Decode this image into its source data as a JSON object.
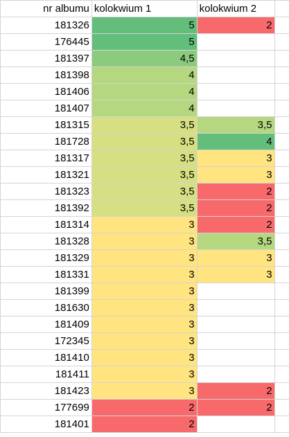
{
  "headers": {
    "album": "nr albumu",
    "k1": "kolokwium 1",
    "k2": "kolokwium 2"
  },
  "colors": {
    "green_dark": "#63be7b",
    "green_mid": "#a9d27f",
    "green_light": "#b5d77f",
    "yellow_green": "#d6df81",
    "yellow": "#ffe47f",
    "red": "#f8696b",
    "white": "#ffffff",
    "gridline": "#d4d4d4"
  },
  "rows": [
    {
      "album": "181326",
      "k1": "5",
      "k1_color": "#63be7b",
      "k2": "2",
      "k2_color": "#f8696b"
    },
    {
      "album": "176445",
      "k1": "5",
      "k1_color": "#63be7b",
      "k2": "",
      "k2_color": "#ffffff"
    },
    {
      "album": "181397",
      "k1": "4,5",
      "k1_color": "#8ccb7e",
      "k2": "",
      "k2_color": "#ffffff"
    },
    {
      "album": "181398",
      "k1": "4",
      "k1_color": "#b5d77f",
      "k2": "",
      "k2_color": "#ffffff"
    },
    {
      "album": "181406",
      "k1": "4",
      "k1_color": "#b5d77f",
      "k2": "",
      "k2_color": "#ffffff"
    },
    {
      "album": "181407",
      "k1": "4",
      "k1_color": "#b5d77f",
      "k2": "",
      "k2_color": "#ffffff"
    },
    {
      "album": "181315",
      "k1": "3,5",
      "k1_color": "#d6df81",
      "k2": "3,5",
      "k2_color": "#b5d77f"
    },
    {
      "album": "181728",
      "k1": "3,5",
      "k1_color": "#d6df81",
      "k2": "4",
      "k2_color": "#63be7b"
    },
    {
      "album": "181317",
      "k1": "3,5",
      "k1_color": "#d6df81",
      "k2": "3",
      "k2_color": "#ffe47f"
    },
    {
      "album": "181321",
      "k1": "3,5",
      "k1_color": "#d6df81",
      "k2": "3",
      "k2_color": "#ffe47f"
    },
    {
      "album": "181323",
      "k1": "3,5",
      "k1_color": "#d6df81",
      "k2": "2",
      "k2_color": "#f8696b"
    },
    {
      "album": "181392",
      "k1": "3,5",
      "k1_color": "#d6df81",
      "k2": "2",
      "k2_color": "#f8696b"
    },
    {
      "album": "181314",
      "k1": "3",
      "k1_color": "#ffe47f",
      "k2": "2",
      "k2_color": "#f8696b"
    },
    {
      "album": "181328",
      "k1": "3",
      "k1_color": "#ffe47f",
      "k2": "3,5",
      "k2_color": "#b5d77f"
    },
    {
      "album": "181329",
      "k1": "3",
      "k1_color": "#ffe47f",
      "k2": "3",
      "k2_color": "#ffe47f"
    },
    {
      "album": "181331",
      "k1": "3",
      "k1_color": "#ffe47f",
      "k2": "3",
      "k2_color": "#ffe47f"
    },
    {
      "album": "181399",
      "k1": "3",
      "k1_color": "#ffe47f",
      "k2": "",
      "k2_color": "#ffffff"
    },
    {
      "album": "181630",
      "k1": "3",
      "k1_color": "#ffe47f",
      "k2": "",
      "k2_color": "#ffffff"
    },
    {
      "album": "181409",
      "k1": "3",
      "k1_color": "#ffe47f",
      "k2": "",
      "k2_color": "#ffffff"
    },
    {
      "album": "172345",
      "k1": "3",
      "k1_color": "#ffe47f",
      "k2": "",
      "k2_color": "#ffffff"
    },
    {
      "album": "181410",
      "k1": "3",
      "k1_color": "#ffe47f",
      "k2": "",
      "k2_color": "#ffffff"
    },
    {
      "album": "181411",
      "k1": "3",
      "k1_color": "#ffe47f",
      "k2": "",
      "k2_color": "#ffffff"
    },
    {
      "album": "181423",
      "k1": "3",
      "k1_color": "#ffe47f",
      "k2": "2",
      "k2_color": "#f8696b"
    },
    {
      "album": "177699",
      "k1": "2",
      "k1_color": "#f8696b",
      "k2": "2",
      "k2_color": "#f8696b"
    },
    {
      "album": "181401",
      "k1": "2",
      "k1_color": "#f8696b",
      "k2": "",
      "k2_color": "#ffffff"
    }
  ]
}
